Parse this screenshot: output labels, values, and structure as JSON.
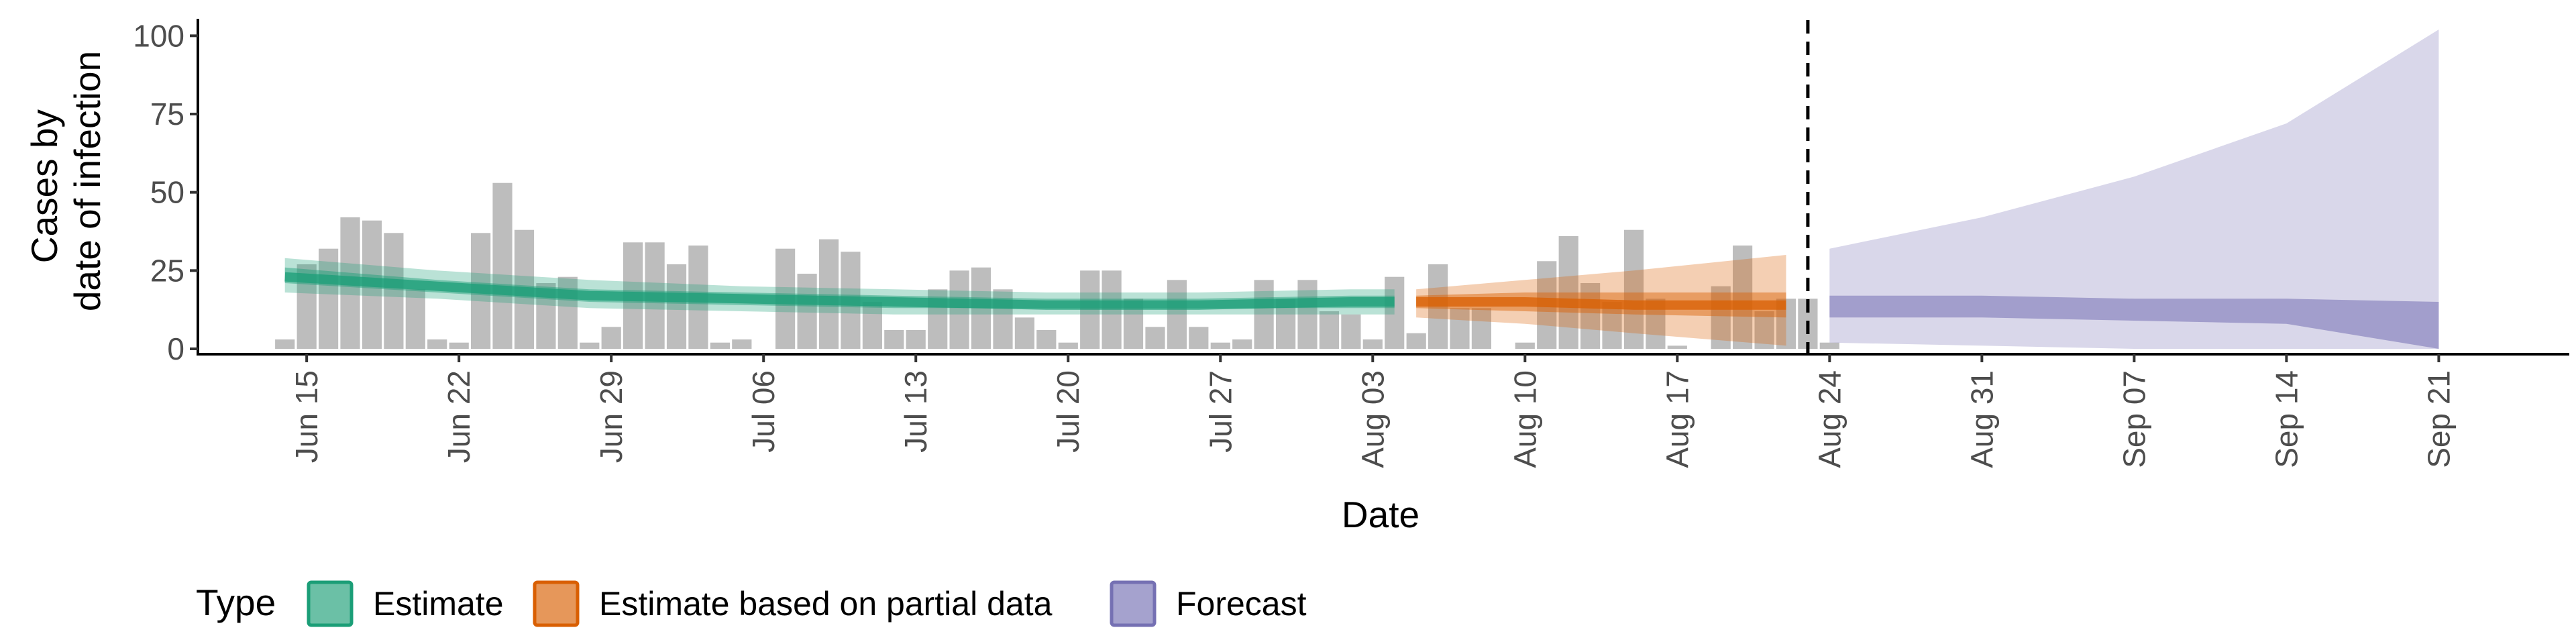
{
  "chart_data": {
    "type": "bar",
    "xlabel": "Date",
    "ylabel": [
      "Cases by",
      "date of infection"
    ],
    "ylim": [
      0,
      105
    ],
    "x_range": [
      "2020-06-10",
      "2020-09-27"
    ],
    "y_ticks": [
      0,
      25,
      50,
      75,
      100
    ],
    "x_ticks": [
      {
        "date": "2020-06-15",
        "label": "Jun 15"
      },
      {
        "date": "2020-06-22",
        "label": "Jun 22"
      },
      {
        "date": "2020-06-29",
        "label": "Jun 29"
      },
      {
        "date": "2020-07-06",
        "label": "Jul 06"
      },
      {
        "date": "2020-07-13",
        "label": "Jul 13"
      },
      {
        "date": "2020-07-20",
        "label": "Jul 20"
      },
      {
        "date": "2020-07-27",
        "label": "Jul 27"
      },
      {
        "date": "2020-08-03",
        "label": "Aug 03"
      },
      {
        "date": "2020-08-10",
        "label": "Aug 10"
      },
      {
        "date": "2020-08-17",
        "label": "Aug 17"
      },
      {
        "date": "2020-08-24",
        "label": "Aug 24"
      },
      {
        "date": "2020-08-31",
        "label": "Aug 31"
      },
      {
        "date": "2020-09-07",
        "label": "Sep 07"
      },
      {
        "date": "2020-09-14",
        "label": "Sep 14"
      },
      {
        "date": "2020-09-21",
        "label": "Sep 21"
      }
    ],
    "grid": false,
    "forecast_start": "2020-08-23",
    "legend": {
      "title": "Type",
      "placement": "bottom",
      "entries": [
        {
          "label": "Estimate",
          "color": "#1B9E77"
        },
        {
          "label": "Estimate based on partial data",
          "color": "#D95F02"
        },
        {
          "label": "Forecast",
          "color": "#7570B3"
        }
      ]
    },
    "bars": {
      "color": "#bdbdbd",
      "start_date": "2020-06-14",
      "values": [
        3,
        27,
        32,
        42,
        41,
        37,
        19,
        3,
        2,
        37,
        53,
        38,
        21,
        23,
        2,
        7,
        34,
        34,
        27,
        33,
        2,
        3,
        0,
        32,
        24,
        35,
        31,
        15,
        6,
        6,
        19,
        25,
        26,
        19,
        10,
        6,
        2,
        25,
        25,
        16,
        7,
        22,
        7,
        2,
        3,
        22,
        16,
        22,
        12,
        11,
        3,
        23,
        5,
        27,
        13,
        13,
        0,
        2,
        28,
        36,
        21,
        15,
        38,
        16,
        1,
        0,
        20,
        33,
        12,
        16,
        16,
        2
      ]
    },
    "series": [
      {
        "type": "Estimate",
        "color": "#1B9E77",
        "x": [
          "2020-06-14",
          "2020-06-21",
          "2020-06-28",
          "2020-07-05",
          "2020-07-12",
          "2020-07-19",
          "2020-07-26",
          "2020-08-02",
          "2020-08-04"
        ],
        "median": [
          23,
          20,
          17,
          16,
          15,
          14,
          14,
          15,
          15
        ],
        "lower_50": [
          21,
          18,
          15,
          14,
          13,
          13,
          13,
          13,
          13
        ],
        "upper_50": [
          26,
          22,
          19,
          18,
          17,
          16,
          16,
          17,
          17
        ],
        "lower_90": [
          18,
          16,
          13,
          12,
          11,
          11,
          11,
          11,
          11
        ],
        "upper_90": [
          29,
          25,
          22,
          20,
          19,
          18,
          18,
          19,
          19
        ]
      },
      {
        "type": "Estimate based on partial data",
        "color": "#D95F02",
        "x": [
          "2020-08-05",
          "2020-08-10",
          "2020-08-15",
          "2020-08-22"
        ],
        "median": [
          15,
          15,
          14,
          14
        ],
        "lower_50": [
          13,
          12,
          11,
          10
        ],
        "upper_50": [
          17,
          18,
          18,
          18
        ],
        "lower_90": [
          10,
          8,
          5,
          1
        ],
        "upper_90": [
          19,
          22,
          25,
          30
        ]
      },
      {
        "type": "Forecast",
        "color": "#7570B3",
        "x": [
          "2020-08-24",
          "2020-08-31",
          "2020-09-07",
          "2020-09-14",
          "2020-09-21"
        ],
        "lower_50": [
          10,
          10,
          9,
          8,
          0
        ],
        "upper_50": [
          17,
          17,
          16,
          16,
          15
        ],
        "lower_90": [
          2,
          1,
          0,
          0,
          0
        ],
        "upper_90": [
          32,
          42,
          55,
          72,
          102
        ]
      }
    ]
  }
}
